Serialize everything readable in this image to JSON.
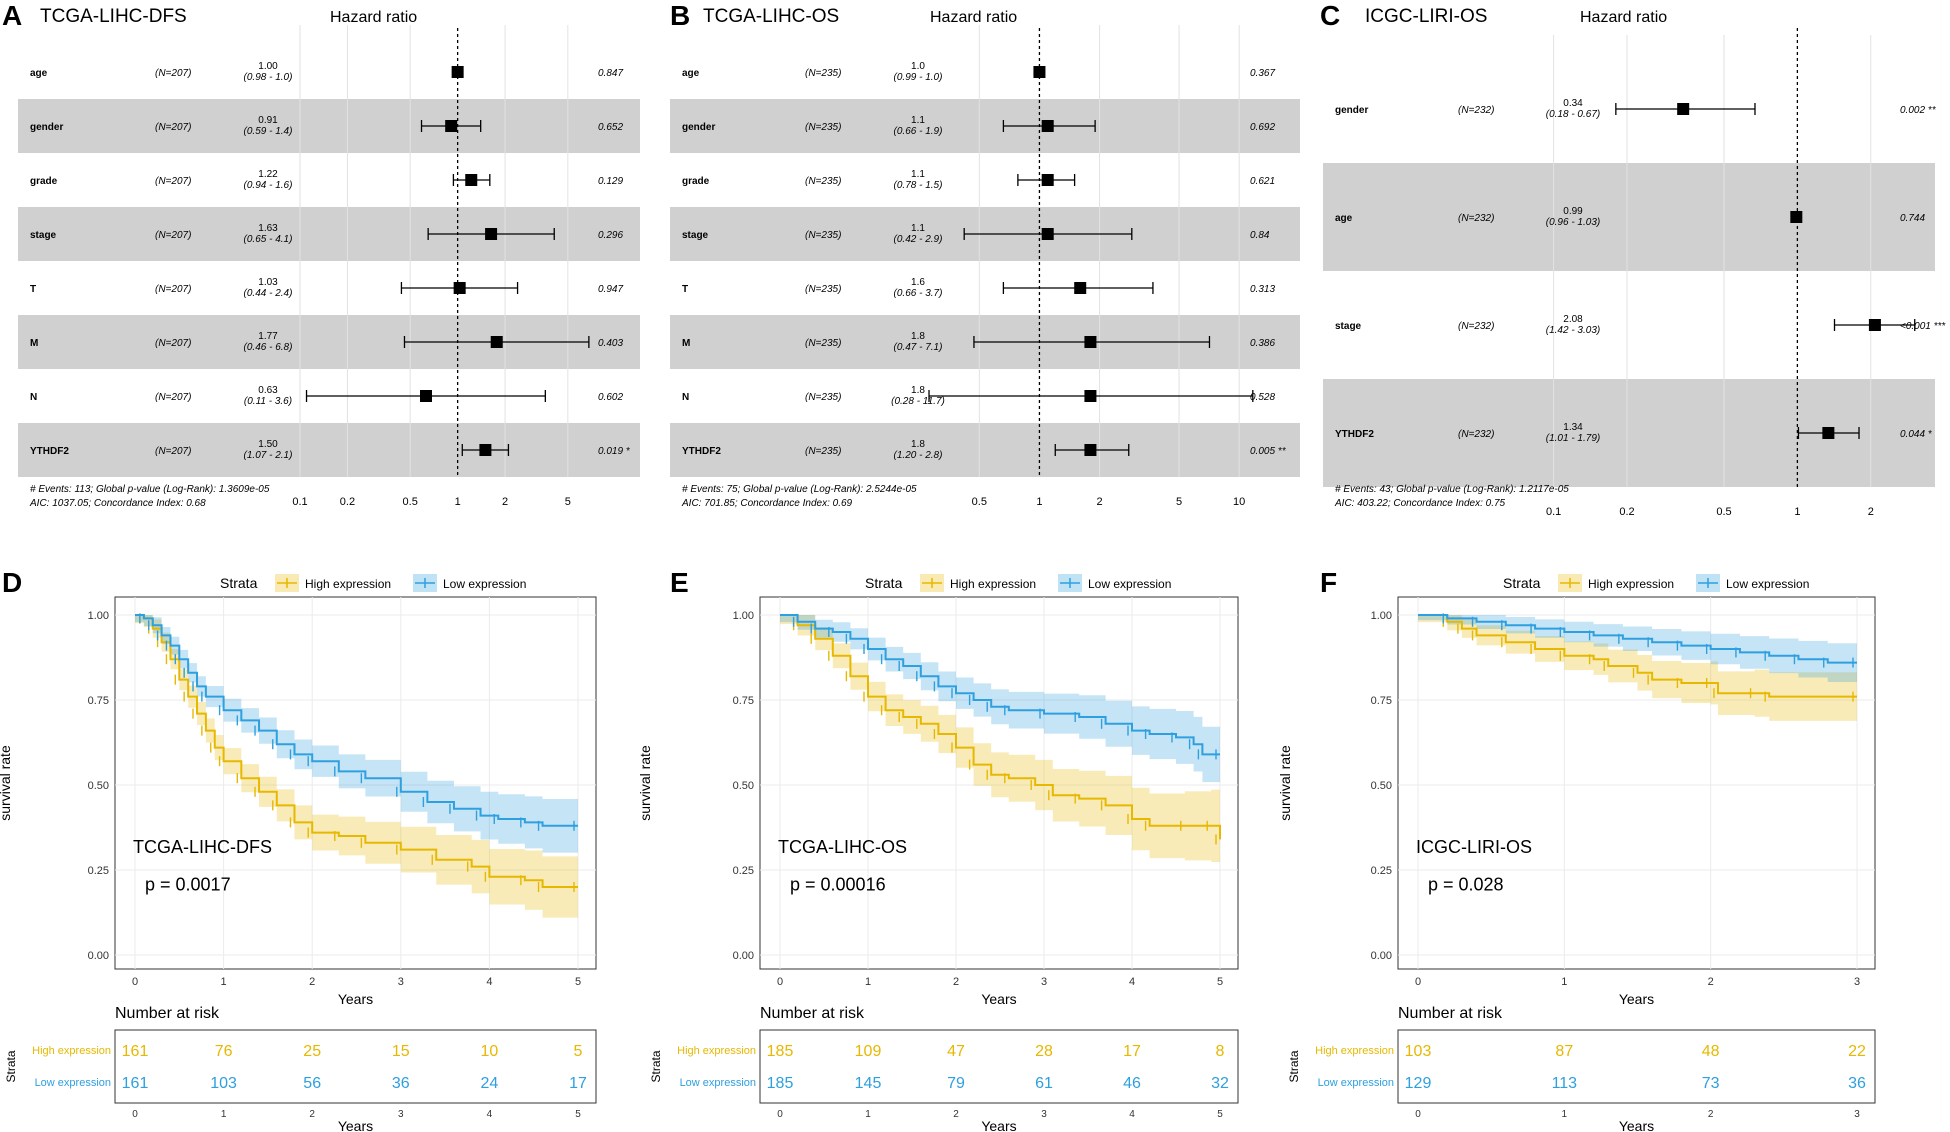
{
  "chart_data": [
    {
      "type": "forest",
      "panel_letter": "A",
      "title": "TCGA-LIHC-DFS",
      "header": "Hazard ratio",
      "axis_ticks": [
        "0.1",
        "0.2",
        "0.5",
        "1",
        "2",
        "5"
      ],
      "xlim": [
        0.1,
        8
      ],
      "rows": [
        {
          "var": "age",
          "n": "(N=207)",
          "hr": "1.00",
          "ci": "(0.98 - 1.0)",
          "p": "0.847",
          "est": 1.0,
          "lo": 0.98,
          "hi": 1.02
        },
        {
          "var": "gender",
          "n": "(N=207)",
          "hr": "0.91",
          "ci": "(0.59 - 1.4)",
          "p": "0.652",
          "est": 0.91,
          "lo": 0.59,
          "hi": 1.4
        },
        {
          "var": "grade",
          "n": "(N=207)",
          "hr": "1.22",
          "ci": "(0.94 - 1.6)",
          "p": "0.129",
          "est": 1.22,
          "lo": 0.94,
          "hi": 1.6
        },
        {
          "var": "stage",
          "n": "(N=207)",
          "hr": "1.63",
          "ci": "(0.65 - 4.1)",
          "p": "0.296",
          "est": 1.63,
          "lo": 0.65,
          "hi": 4.1
        },
        {
          "var": "T",
          "n": "(N=207)",
          "hr": "1.03",
          "ci": "(0.44 - 2.4)",
          "p": "0.947",
          "est": 1.03,
          "lo": 0.44,
          "hi": 2.4
        },
        {
          "var": "M",
          "n": "(N=207)",
          "hr": "1.77",
          "ci": "(0.46 - 6.8)",
          "p": "0.403",
          "est": 1.77,
          "lo": 0.46,
          "hi": 6.8
        },
        {
          "var": "N",
          "n": "(N=207)",
          "hr": "0.63",
          "ci": "(0.11 - 3.6)",
          "p": "0.602",
          "est": 0.63,
          "lo": 0.11,
          "hi": 3.6
        },
        {
          "var": "YTHDF2",
          "n": "(N=207)",
          "hr": "1.50",
          "ci": "(1.07 - 2.1)",
          "p": "0.019 *",
          "est": 1.5,
          "lo": 1.07,
          "hi": 2.1
        }
      ],
      "footer1": "# Events: 113; Global p-value (Log-Rank): 1.3609e-05",
      "footer2": "AIC: 1037.05; Concordance Index: 0.68"
    },
    {
      "type": "forest",
      "panel_letter": "B",
      "title": "TCGA-LIHC-OS",
      "header": "Hazard ratio",
      "axis_ticks": [
        "0.5",
        "1",
        "2",
        "5",
        "10"
      ],
      "xlim": [
        0.3,
        12
      ],
      "rows": [
        {
          "var": "age",
          "n": "(N=235)",
          "hr": "1.0",
          "ci": "(0.99 - 1.0)",
          "p": "0.367",
          "est": 1.0,
          "lo": 0.99,
          "hi": 1.02
        },
        {
          "var": "gender",
          "n": "(N=235)",
          "hr": "1.1",
          "ci": "(0.66 - 1.9)",
          "p": "0.692",
          "est": 1.1,
          "lo": 0.66,
          "hi": 1.9
        },
        {
          "var": "grade",
          "n": "(N=235)",
          "hr": "1.1",
          "ci": "(0.78 - 1.5)",
          "p": "0.621",
          "est": 1.1,
          "lo": 0.78,
          "hi": 1.5
        },
        {
          "var": "stage",
          "n": "(N=235)",
          "hr": "1.1",
          "ci": "(0.42 - 2.9)",
          "p": "0.84",
          "est": 1.1,
          "lo": 0.42,
          "hi": 2.9
        },
        {
          "var": "T",
          "n": "(N=235)",
          "hr": "1.6",
          "ci": "(0.66 - 3.7)",
          "p": "0.313",
          "est": 1.6,
          "lo": 0.66,
          "hi": 3.7
        },
        {
          "var": "M",
          "n": "(N=235)",
          "hr": "1.8",
          "ci": "(0.47 - 7.1)",
          "p": "0.386",
          "est": 1.8,
          "lo": 0.47,
          "hi": 7.1
        },
        {
          "var": "N",
          "n": "(N=235)",
          "hr": "1.8",
          "ci": "(0.28 - 11.7)",
          "p": "0.528",
          "est": 1.8,
          "lo": 0.28,
          "hi": 11.7
        },
        {
          "var": "YTHDF2",
          "n": "(N=235)",
          "hr": "1.8",
          "ci": "(1.20 - 2.8)",
          "p": "0.005 **",
          "est": 1.8,
          "lo": 1.2,
          "hi": 2.8
        }
      ],
      "footer1": "# Events: 75; Global p-value (Log-Rank): 2.5244e-05",
      "footer2": "AIC: 701.85; Concordance Index: 0.69"
    },
    {
      "type": "forest",
      "panel_letter": "C",
      "title": "ICGC-LIRI-OS",
      "header": "Hazard ratio",
      "axis_ticks": [
        "0.1",
        "0.2",
        "0.5",
        "1",
        "2"
      ],
      "xlim": [
        0.08,
        3.5
      ],
      "rows": [
        {
          "var": "gender",
          "n": "(N=232)",
          "hr": "0.34",
          "ci": "(0.18 - 0.67)",
          "p": "0.002 **",
          "est": 0.34,
          "lo": 0.18,
          "hi": 0.67
        },
        {
          "var": "age",
          "n": "(N=232)",
          "hr": "0.99",
          "ci": "(0.96 - 1.03)",
          "p": "0.744",
          "est": 0.99,
          "lo": 0.96,
          "hi": 1.03
        },
        {
          "var": "stage",
          "n": "(N=232)",
          "hr": "2.08",
          "ci": "(1.42 - 3.03)",
          "p": "<0.001 ***",
          "est": 2.08,
          "lo": 1.42,
          "hi": 3.03
        },
        {
          "var": "YTHDF2",
          "n": "(N=232)",
          "hr": "1.34",
          "ci": "(1.01 - 1.79)",
          "p": "0.044 *",
          "est": 1.34,
          "lo": 1.01,
          "hi": 1.79
        }
      ],
      "footer1": "# Events: 43; Global p-value (Log-Rank): 1.2117e-05",
      "footer2": "AIC: 403.22; Concordance Index: 0.75"
    },
    {
      "type": "kaplan-meier",
      "panel_letter": "D",
      "plot_label": "TCGA-LIHC-DFS",
      "pvalue": "p = 0.0017",
      "legend_title": "Strata",
      "xlabel": "Years",
      "ylabel": "survival rate",
      "xlim": [
        0,
        5
      ],
      "ylim": [
        0,
        1
      ],
      "x_ticks": [
        "0",
        "1",
        "2",
        "3",
        "4",
        "5"
      ],
      "y_ticks": [
        "0.00",
        "0.25",
        "0.50",
        "0.75",
        "1.00"
      ],
      "risk_title": "Number at risk",
      "risk_axis_label": "Strata",
      "series": [
        {
          "name": "High expression",
          "color": "#E7B800",
          "points": [
            [
              0,
              1
            ],
            [
              0.1,
              0.99
            ],
            [
              0.2,
              0.96
            ],
            [
              0.3,
              0.92
            ],
            [
              0.4,
              0.87
            ],
            [
              0.5,
              0.81
            ],
            [
              0.6,
              0.76
            ],
            [
              0.7,
              0.71
            ],
            [
              0.8,
              0.66
            ],
            [
              0.9,
              0.61
            ],
            [
              1.0,
              0.57
            ],
            [
              1.2,
              0.52
            ],
            [
              1.4,
              0.48
            ],
            [
              1.6,
              0.44
            ],
            [
              1.8,
              0.39
            ],
            [
              2.0,
              0.36
            ],
            [
              2.3,
              0.35
            ],
            [
              2.6,
              0.33
            ],
            [
              3.0,
              0.31
            ],
            [
              3.4,
              0.28
            ],
            [
              3.8,
              0.26
            ],
            [
              4.0,
              0.23
            ],
            [
              4.4,
              0.22
            ],
            [
              4.6,
              0.2
            ],
            [
              5.0,
              0.2
            ]
          ],
          "ci_width": 0.08
        },
        {
          "name": "Low expression",
          "color": "#2E9FDF",
          "points": [
            [
              0,
              1
            ],
            [
              0.1,
              0.99
            ],
            [
              0.2,
              0.97
            ],
            [
              0.3,
              0.94
            ],
            [
              0.4,
              0.91
            ],
            [
              0.5,
              0.87
            ],
            [
              0.6,
              0.83
            ],
            [
              0.7,
              0.79
            ],
            [
              0.8,
              0.76
            ],
            [
              1.0,
              0.72
            ],
            [
              1.2,
              0.69
            ],
            [
              1.4,
              0.66
            ],
            [
              1.6,
              0.62
            ],
            [
              1.8,
              0.59
            ],
            [
              2.0,
              0.57
            ],
            [
              2.3,
              0.54
            ],
            [
              2.6,
              0.52
            ],
            [
              3.0,
              0.48
            ],
            [
              3.3,
              0.45
            ],
            [
              3.6,
              0.43
            ],
            [
              3.9,
              0.41
            ],
            [
              4.1,
              0.4
            ],
            [
              4.4,
              0.39
            ],
            [
              4.6,
              0.38
            ],
            [
              5.0,
              0.38
            ]
          ],
          "ci_width": 0.07
        }
      ],
      "risk": {
        "High expression": [
          "161",
          "76",
          "25",
          "15",
          "10",
          "5"
        ],
        "Low expression": [
          "161",
          "103",
          "56",
          "36",
          "24",
          "17"
        ]
      }
    },
    {
      "type": "kaplan-meier",
      "panel_letter": "E",
      "plot_label": "TCGA-LIHC-OS",
      "pvalue": "p = 0.00016",
      "legend_title": "Strata",
      "xlabel": "Years",
      "ylabel": "survival rate",
      "xlim": [
        0,
        5
      ],
      "ylim": [
        0,
        1
      ],
      "x_ticks": [
        "0",
        "1",
        "2",
        "3",
        "4",
        "5"
      ],
      "y_ticks": [
        "0.00",
        "0.25",
        "0.50",
        "0.75",
        "1.00"
      ],
      "risk_title": "Number at risk",
      "risk_axis_label": "Strata",
      "series": [
        {
          "name": "High expression",
          "color": "#E7B800",
          "points": [
            [
              0,
              1
            ],
            [
              0.2,
              0.97
            ],
            [
              0.4,
              0.93
            ],
            [
              0.6,
              0.88
            ],
            [
              0.8,
              0.82
            ],
            [
              1.0,
              0.76
            ],
            [
              1.2,
              0.72
            ],
            [
              1.4,
              0.7
            ],
            [
              1.6,
              0.68
            ],
            [
              1.8,
              0.65
            ],
            [
              2.0,
              0.61
            ],
            [
              2.2,
              0.56
            ],
            [
              2.4,
              0.53
            ],
            [
              2.6,
              0.52
            ],
            [
              2.9,
              0.5
            ],
            [
              3.1,
              0.47
            ],
            [
              3.4,
              0.46
            ],
            [
              3.7,
              0.44
            ],
            [
              4.0,
              0.4
            ],
            [
              4.2,
              0.38
            ],
            [
              4.6,
              0.38
            ],
            [
              4.9,
              0.38
            ],
            [
              5.0,
              0.34
            ]
          ],
          "ci_width": 0.09
        },
        {
          "name": "Low expression",
          "color": "#2E9FDF",
          "points": [
            [
              0,
              1
            ],
            [
              0.2,
              0.98
            ],
            [
              0.4,
              0.96
            ],
            [
              0.6,
              0.95
            ],
            [
              0.8,
              0.93
            ],
            [
              1.0,
              0.9
            ],
            [
              1.2,
              0.87
            ],
            [
              1.4,
              0.85
            ],
            [
              1.6,
              0.82
            ],
            [
              1.8,
              0.79
            ],
            [
              2.0,
              0.77
            ],
            [
              2.2,
              0.75
            ],
            [
              2.4,
              0.73
            ],
            [
              2.6,
              0.72
            ],
            [
              3.0,
              0.71
            ],
            [
              3.4,
              0.7
            ],
            [
              3.7,
              0.68
            ],
            [
              4.0,
              0.66
            ],
            [
              4.2,
              0.65
            ],
            [
              4.5,
              0.64
            ],
            [
              4.7,
              0.62
            ],
            [
              4.8,
              0.59
            ],
            [
              5.0,
              0.59
            ]
          ],
          "ci_width": 0.07
        }
      ],
      "risk": {
        "High expression": [
          "185",
          "109",
          "47",
          "28",
          "17",
          "8"
        ],
        "Low expression": [
          "185",
          "145",
          "79",
          "61",
          "46",
          "32"
        ]
      }
    },
    {
      "type": "kaplan-meier",
      "panel_letter": "F",
      "plot_label": "ICGC-LIRI-OS",
      "pvalue": "p = 0.028",
      "legend_title": "Strata",
      "xlabel": "Years",
      "ylabel": "survival rate",
      "xlim": [
        0,
        3
      ],
      "ylim": [
        0,
        1
      ],
      "x_ticks": [
        "0",
        "1",
        "2",
        "3"
      ],
      "y_ticks": [
        "0.00",
        "0.25",
        "0.50",
        "0.75",
        "1.00"
      ],
      "risk_title": "Number at risk",
      "risk_axis_label": "Strata",
      "series": [
        {
          "name": "High expression",
          "color": "#E7B800",
          "points": [
            [
              0,
              1
            ],
            [
              0.2,
              0.98
            ],
            [
              0.3,
              0.96
            ],
            [
              0.4,
              0.94
            ],
            [
              0.6,
              0.92
            ],
            [
              0.8,
              0.9
            ],
            [
              1.0,
              0.88
            ],
            [
              1.2,
              0.87
            ],
            [
              1.3,
              0.85
            ],
            [
              1.5,
              0.83
            ],
            [
              1.6,
              0.81
            ],
            [
              1.8,
              0.8
            ],
            [
              2.0,
              0.8
            ],
            [
              2.05,
              0.77
            ],
            [
              2.3,
              0.77
            ],
            [
              2.4,
              0.76
            ],
            [
              3.0,
              0.76
            ]
          ],
          "ci_width": 0.07
        },
        {
          "name": "Low expression",
          "color": "#2E9FDF",
          "points": [
            [
              0,
              1
            ],
            [
              0.2,
              0.99
            ],
            [
              0.4,
              0.98
            ],
            [
              0.6,
              0.97
            ],
            [
              0.8,
              0.96
            ],
            [
              1.0,
              0.95
            ],
            [
              1.2,
              0.94
            ],
            [
              1.4,
              0.93
            ],
            [
              1.6,
              0.92
            ],
            [
              1.8,
              0.91
            ],
            [
              2.0,
              0.9
            ],
            [
              2.2,
              0.89
            ],
            [
              2.4,
              0.88
            ],
            [
              2.6,
              0.87
            ],
            [
              2.8,
              0.86
            ],
            [
              3.0,
              0.86
            ]
          ],
          "ci_width": 0.05
        }
      ],
      "risk": {
        "High expression": [
          "103",
          "87",
          "48",
          "22"
        ],
        "Low expression": [
          "129",
          "113",
          "73",
          "36"
        ]
      }
    }
  ]
}
